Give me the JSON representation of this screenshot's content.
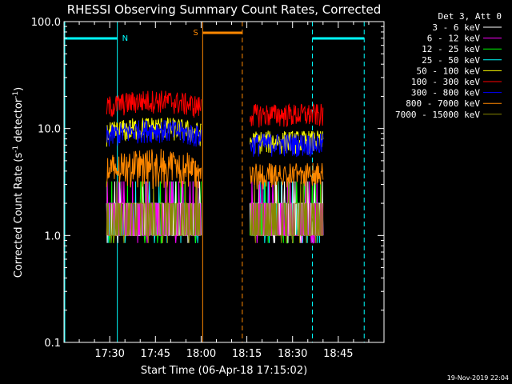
{
  "window": {
    "footer_timestamp": "19-Nov-2019 22:04"
  },
  "chart_data": {
    "type": "line",
    "title": "RHESSI Observing Summary Count Rates, Corrected",
    "xlabel": "Start Time (06-Apr-18 17:15:02)",
    "ylabel_main": "Corrected Count Rate (s",
    "ylabel_sup1": "-1",
    "ylabel_mid": " detector",
    "ylabel_sup2": "-1",
    "ylabel_end": ")",
    "y_scale": "log",
    "ylim": [
      0.1,
      100.0
    ],
    "xlim_minutes_from_start": [
      0,
      105
    ],
    "x_ticks": [
      {
        "label": "17:30",
        "min": 15
      },
      {
        "label": "17:45",
        "min": 30
      },
      {
        "label": "18:00",
        "min": 45
      },
      {
        "label": "18:15",
        "min": 60
      },
      {
        "label": "18:30",
        "min": 75
      },
      {
        "label": "18:45",
        "min": 90
      }
    ],
    "y_ticks": [
      {
        "label": "100.0",
        "value": 100
      },
      {
        "label": "10.0",
        "value": 10
      },
      {
        "label": "1.0",
        "value": 1
      },
      {
        "label": "0.1",
        "value": 0.1
      }
    ],
    "legend_title": "Det 3, Att 0",
    "legend_position": "right",
    "series": [
      {
        "name": "3 - 6 keV",
        "color": "#ffffff",
        "level": 1.6
      },
      {
        "name": "6 - 12 keV",
        "color": "#ff00ff",
        "level": 1.4
      },
      {
        "name": "12 - 25 keV",
        "color": "#00ff00",
        "level": 1.3
      },
      {
        "name": "25 - 50 keV",
        "color": "#00ffff",
        "level": 1.5
      },
      {
        "name": "50 - 100 keV",
        "color": "#ffff00",
        "level": 9.0
      },
      {
        "name": "100 - 300 keV",
        "color": "#ff0000",
        "level": 16.0
      },
      {
        "name": "300 - 800 keV",
        "color": "#0000ff",
        "level": 8.5
      },
      {
        "name": "800 - 7000 keV",
        "color": "#ff8800",
        "level": 4.5
      },
      {
        "name": "7000 - 15000 keV",
        "color": "#888800",
        "level": 1.2
      }
    ],
    "data_windows": [
      {
        "start_min": 14,
        "end_min": 45
      },
      {
        "start_min": 61,
        "end_min": 85
      }
    ],
    "flags": [
      {
        "label": "N",
        "color": "#00ffff",
        "segments": [
          [
            0,
            17.5
          ],
          [
            81.5,
            98.5
          ]
        ],
        "boundaries": [
          17.5,
          81.5,
          98.5
        ]
      },
      {
        "label": "S",
        "color": "#ff8800",
        "segments": [
          [
            45.5,
            58.5
          ]
        ],
        "boundaries": [
          45.5,
          58.5
        ]
      }
    ]
  }
}
